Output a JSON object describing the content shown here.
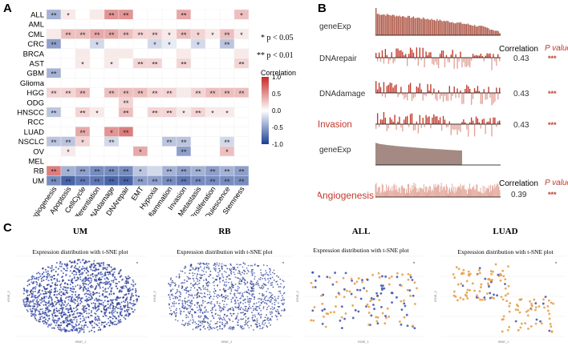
{
  "panels": {
    "a": "A",
    "b": "B",
    "c": "C"
  },
  "heatmap": {
    "rows": [
      "ALL",
      "AML",
      "CML",
      "CRC",
      "BRCA",
      "AST",
      "GBM",
      "Glioma",
      "HGG",
      "ODG",
      "HNSCC",
      "RCC",
      "LUAD",
      "NSCLC",
      "OV",
      "MEL",
      "RB",
      "UM"
    ],
    "cols": [
      "Angiogenesis",
      "Apoptosis",
      "CellCycle",
      "Differentiation",
      "DNAdamage",
      "DNArepair",
      "EMT",
      "Hypoxia",
      "Inflammation",
      "Invasion",
      "Metastasis",
      "Proliferation",
      "Quiescence",
      "Stemness"
    ],
    "values": [
      [
        -0.4,
        0.1,
        0,
        0.1,
        0.5,
        0.5,
        0,
        0,
        0,
        0.4,
        0,
        0,
        0,
        0.3
      ],
      [
        0,
        0,
        0,
        0,
        0,
        0,
        0,
        0,
        0,
        0,
        0,
        0,
        0,
        0
      ],
      [
        0.1,
        0.3,
        0.3,
        0.4,
        0.4,
        0.3,
        0.2,
        0.2,
        0.1,
        0.3,
        0.2,
        0.1,
        0.3,
        0.1
      ],
      [
        -0.5,
        0,
        0,
        -0.2,
        0,
        0,
        0,
        -0.2,
        -0.1,
        0,
        -0.2,
        0,
        -0.3,
        0
      ],
      [
        0,
        0,
        0.1,
        0,
        0.1,
        0.1,
        0,
        0,
        0,
        0.1,
        0,
        0,
        0,
        0.1
      ],
      [
        0,
        0,
        0.1,
        0,
        0.1,
        0,
        0.2,
        0.2,
        0,
        0.2,
        0,
        0,
        0,
        0.2
      ],
      [
        -0.4,
        0,
        0,
        0,
        0,
        0,
        0,
        0,
        0,
        0,
        0,
        0,
        0,
        0
      ],
      [
        0,
        0,
        0,
        0,
        0,
        0,
        0,
        0,
        0,
        0,
        0,
        0,
        0,
        0
      ],
      [
        0.2,
        0.2,
        0.3,
        0,
        0.3,
        0.3,
        0.3,
        0.2,
        0.2,
        0.1,
        0.2,
        0.3,
        0.3,
        0.3
      ],
      [
        0,
        0,
        0,
        0,
        0,
        0.2,
        0,
        0,
        0,
        0,
        0,
        0,
        0,
        0
      ],
      [
        -0.3,
        0,
        0.2,
        0.1,
        0,
        0.3,
        0,
        0.2,
        0.2,
        0.1,
        0.2,
        0.1,
        0.1,
        0
      ],
      [
        0,
        0,
        0,
        0,
        0,
        0,
        0,
        0,
        0,
        0,
        0,
        0,
        0,
        0
      ],
      [
        0,
        0,
        0.4,
        0,
        0.5,
        0.6,
        0,
        0,
        0,
        0,
        0,
        0,
        0,
        0
      ],
      [
        -0.3,
        -0.3,
        0.2,
        0,
        -0.2,
        0,
        0,
        0,
        -0.3,
        -0.3,
        0,
        0,
        -0.2,
        0
      ],
      [
        0,
        0.1,
        0,
        0,
        0,
        0,
        0.4,
        0,
        0,
        -0.5,
        0,
        0,
        0.3,
        0
      ],
      [
        0,
        0,
        0,
        0,
        0,
        0,
        0,
        0,
        0,
        0,
        0,
        0,
        0,
        0
      ],
      [
        0.6,
        -0.4,
        -0.5,
        -0.6,
        -0.6,
        -0.6,
        -0.3,
        -0.2,
        -0.4,
        -0.5,
        -0.4,
        -0.5,
        -0.4,
        -0.5
      ],
      [
        -0.6,
        -0.8,
        -0.7,
        -0.7,
        -0.8,
        -0.8,
        -0.5,
        -0.5,
        -0.6,
        -0.7,
        -0.6,
        -0.6,
        -0.6,
        -0.6
      ]
    ],
    "stars": [
      [
        "**",
        "*",
        "",
        "",
        "**",
        "**",
        "",
        "",
        "",
        "**",
        "",
        "",
        "",
        "*"
      ],
      [
        "",
        "",
        "",
        "",
        "",
        "",
        "",
        "",
        "",
        "",
        "",
        "",
        "",
        ""
      ],
      [
        "",
        "**",
        "**",
        "**",
        "**",
        "**",
        "**",
        "**",
        "*",
        "**",
        "*",
        "*",
        "**",
        "*"
      ],
      [
        "**",
        "",
        "",
        "*",
        "",
        "",
        "",
        "*",
        "*",
        "",
        "*",
        "",
        "**",
        ""
      ],
      [
        "",
        "",
        "",
        "",
        "",
        "",
        "",
        "",
        "",
        "",
        "",
        "",
        "",
        ""
      ],
      [
        "",
        "",
        "*",
        "",
        "*",
        "",
        "**",
        "**",
        "",
        "**",
        "",
        "",
        "",
        "**"
      ],
      [
        "**",
        "",
        "",
        "",
        "",
        "",
        "",
        "",
        "",
        "",
        "",
        "",
        "",
        ""
      ],
      [
        "",
        "",
        "",
        "",
        "",
        "",
        "",
        "",
        "",
        "",
        "",
        "",
        "",
        ""
      ],
      [
        "**",
        "**",
        "**",
        "",
        "**",
        "**",
        "**",
        "**",
        "**",
        "",
        "**",
        "**",
        "**",
        "**"
      ],
      [
        "",
        "",
        "",
        "",
        "",
        "**",
        "",
        "",
        "",
        "",
        "",
        "",
        "",
        ""
      ],
      [
        "**",
        "",
        "**",
        "*",
        "",
        "**",
        "",
        "**",
        "**",
        "*",
        "**",
        "*",
        "*",
        ""
      ],
      [
        "",
        "",
        "",
        "",
        "",
        "",
        "",
        "",
        "",
        "",
        "",
        "",
        "",
        ""
      ],
      [
        "",
        "",
        "**",
        "",
        "*",
        "**",
        "",
        "",
        "",
        "",
        "",
        "",
        "",
        ""
      ],
      [
        "**",
        "**",
        "*",
        "",
        "**",
        "",
        "",
        "",
        "**",
        "**",
        "",
        "",
        "**",
        ""
      ],
      [
        "",
        "*",
        "",
        "",
        "",
        "",
        "*",
        "",
        "",
        "**",
        "",
        "",
        "*",
        ""
      ],
      [
        "",
        "",
        "",
        "",
        "",
        "",
        "",
        "",
        "",
        "",
        "",
        "",
        "",
        ""
      ],
      [
        "**",
        "*",
        "**",
        "**",
        "**",
        "**",
        "*",
        "",
        "**",
        "**",
        "**",
        "**",
        "**",
        "**"
      ],
      [
        "**",
        "**",
        "**",
        "**",
        "**",
        "**",
        "**",
        "**",
        "**",
        "**",
        "**",
        "**",
        "**",
        "**"
      ]
    ],
    "legend_title": "Correlation",
    "legend_ticks": [
      "1.0",
      "0.5",
      "0.0",
      "-0.5",
      "-1.0"
    ],
    "sig1": "* p < 0.05",
    "sig2": "** p < 0.01",
    "colors": {
      "pos": "#c62828",
      "neg": "#1c3f95",
      "mid": "#ffffff",
      "star": "#222222"
    }
  },
  "panelB": {
    "genexp_label": "geneExp",
    "correlation_header": "Correlation",
    "pvalue_header": "P value",
    "rows1": [
      {
        "name": "DNArepair",
        "corr": "0.43",
        "p": "***"
      },
      {
        "name": "DNAdamage",
        "corr": "0.43",
        "p": "***"
      },
      {
        "name": "Invasion",
        "corr": "0.43",
        "p": "***"
      }
    ],
    "genexp2_label": "geneExp",
    "row2": {
      "name": "Angiogenesis",
      "corr": "0.39",
      "p": "***"
    },
    "colors": {
      "bar": "#b05a4a",
      "bar_light": "#e2a398",
      "area": "#a48a82",
      "red": "#c0392b"
    }
  },
  "panelC": {
    "plots": [
      {
        "title": "UM",
        "subtitle": "Expression distribution with t-SNE plot",
        "xlabel": "tSNE_1",
        "ylabel": "tSNE_2",
        "style": "blue-dense"
      },
      {
        "title": "RB",
        "subtitle": "Expression distribution with t-SNE plot",
        "xlabel": "tSNE_1",
        "ylabel": "tSNE_2",
        "style": "blue-field"
      },
      {
        "title": "ALL",
        "subtitle": "Expression distribution with t-SNE plot",
        "xlabel": "tSNE_1",
        "ylabel": "tSNE_2",
        "style": "mixed"
      },
      {
        "title": "LUAD",
        "subtitle": "Expression distribution with t-SNE plot",
        "xlabel": "tSNE_1",
        "ylabel": "tSNE_2",
        "style": "mixed-orange"
      }
    ],
    "colors": {
      "blue": "#3a4fb0",
      "navy": "#1f2a78",
      "orange": "#e69a3e",
      "grey": "#888888"
    }
  }
}
